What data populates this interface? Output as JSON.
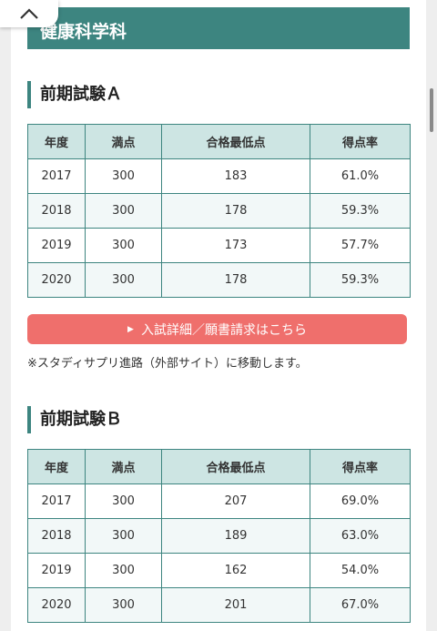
{
  "department": {
    "title": "健康科学科"
  },
  "exams": [
    {
      "title": "前期試験Ａ",
      "headers": [
        "年度",
        "満点",
        "合格最低点",
        "得点率"
      ],
      "rows": [
        [
          "2017",
          "300",
          "183",
          "61.0%"
        ],
        [
          "2018",
          "300",
          "178",
          "59.3%"
        ],
        [
          "2019",
          "300",
          "173",
          "57.7%"
        ],
        [
          "2020",
          "300",
          "178",
          "59.3%"
        ]
      ]
    },
    {
      "title": "前期試験Ｂ",
      "headers": [
        "年度",
        "満点",
        "合格最低点",
        "得点率"
      ],
      "rows": [
        [
          "2017",
          "300",
          "207",
          "69.0%"
        ],
        [
          "2018",
          "300",
          "189",
          "63.0%"
        ],
        [
          "2019",
          "300",
          "162",
          "54.0%"
        ],
        [
          "2020",
          "300",
          "201",
          "67.0%"
        ]
      ]
    }
  ],
  "link_button": {
    "label": "入試詳細／願書請求はこちら",
    "icon": "triangle-right-icon"
  },
  "note": "※スタディサプリ進路（外部サイト）に移動します。",
  "back_to_top": {
    "icon": "chevron-up-icon"
  },
  "colors": {
    "accent": "#3d8580",
    "button": "#ef6f6c",
    "header_cell": "#cde5e3"
  }
}
